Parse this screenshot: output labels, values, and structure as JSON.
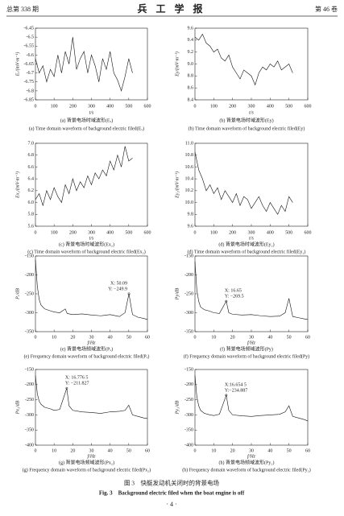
{
  "header": {
    "left": "总第 338 期",
    "title": "兵 工 学 报",
    "right": "第 46 卷"
  },
  "chart_data": [
    {
      "type": "line",
      "ylabel": "Eₓ/(mV·m⁻¹)",
      "xlabel": "t/s",
      "xlim": [
        0,
        600
      ],
      "xticks": [
        0,
        100,
        200,
        300,
        400,
        500,
        600
      ],
      "ylim": [
        -6.85,
        -6.45
      ],
      "yticks": [
        -6.85,
        -6.8,
        -6.75,
        -6.7,
        -6.65,
        -6.6,
        -6.55,
        -6.5,
        -6.45
      ],
      "x": [
        0,
        20,
        40,
        60,
        80,
        100,
        120,
        140,
        160,
        180,
        200,
        220,
        240,
        260,
        280,
        300,
        320,
        340,
        360,
        380,
        400,
        420,
        440,
        460,
        480,
        500,
        520
      ],
      "values": [
        -6.62,
        -6.7,
        -6.66,
        -6.75,
        -6.68,
        -6.72,
        -6.6,
        -6.7,
        -6.58,
        -6.65,
        -6.5,
        -6.68,
        -6.62,
        -6.58,
        -6.7,
        -6.6,
        -6.66,
        -6.75,
        -6.62,
        -6.68,
        -6.58,
        -6.7,
        -6.74,
        -6.8,
        -6.72,
        -6.62,
        -6.7
      ],
      "caption": "(a) 背景电场时域波形(Eₓ)",
      "caption_en": "(a) Time domain waveform of background electric filed(Eₓ)"
    },
    {
      "type": "line",
      "ylabel": "Ey/(mV·m⁻¹)",
      "xlabel": "t/s",
      "xlim": [
        0,
        600
      ],
      "xticks": [
        0,
        100,
        200,
        300,
        400,
        500,
        600
      ],
      "ylim": [
        8.4,
        9.6
      ],
      "yticks": [
        8.4,
        8.6,
        8.8,
        {
          "value": 9,
          "label": "9.0"
        },
        9.2,
        9.4,
        9.6
      ],
      "x": [
        0,
        20,
        40,
        60,
        80,
        100,
        120,
        140,
        160,
        180,
        200,
        220,
        240,
        260,
        280,
        300,
        320,
        340,
        360,
        380,
        400,
        420,
        440,
        460,
        480,
        500,
        520
      ],
      "values": [
        9.45,
        9.4,
        9.5,
        9.35,
        9.3,
        9.2,
        9.25,
        9.1,
        9.05,
        9.15,
        8.95,
        8.85,
        8.75,
        8.9,
        8.85,
        8.8,
        8.65,
        8.85,
        8.95,
        8.9,
        9.0,
        8.95,
        9.05,
        8.9,
        8.95,
        9.0,
        8.85
      ],
      "caption": "(b) 背景电场时域波形(Ey)",
      "caption_en": "(b) Time domain waveform of background electric filed(Ey)"
    },
    {
      "type": "line",
      "ylabel": "Ex₂/(mV·m⁻¹)",
      "xlabel": "t/s",
      "xlim": [
        0,
        600
      ],
      "xticks": [
        0,
        100,
        200,
        300,
        400,
        500,
        600
      ],
      "ylim": [
        5.6,
        7.0
      ],
      "yticks": [
        5.6,
        5.8,
        {
          "value": 6,
          "label": "6.0"
        },
        6.2,
        6.4,
        6.6,
        6.8,
        {
          "value": 7,
          "label": "7.0"
        }
      ],
      "x": [
        0,
        20,
        40,
        60,
        80,
        100,
        120,
        140,
        160,
        180,
        200,
        220,
        240,
        260,
        280,
        300,
        320,
        340,
        360,
        380,
        400,
        420,
        440,
        460,
        480,
        500,
        520
      ],
      "values": [
        6.05,
        6.15,
        5.95,
        6.2,
        6.05,
        6.25,
        6.1,
        6.0,
        6.3,
        6.15,
        6.4,
        6.2,
        6.35,
        6.25,
        6.45,
        6.3,
        6.5,
        6.4,
        6.55,
        6.45,
        6.7,
        6.55,
        6.8,
        6.6,
        6.95,
        6.7,
        6.75
      ],
      "caption": "(c) 背景电场时域波形(Ex₂)",
      "caption_en": "(c) Time domain waveform of background electric filed(Ex₂)"
    },
    {
      "type": "line",
      "ylabel": "Ey₂/(mV·m⁻¹)",
      "xlabel": "t/s",
      "xlim": [
        0,
        600
      ],
      "xticks": [
        0,
        100,
        200,
        300,
        400,
        500,
        600
      ],
      "ylim": [
        9.6,
        11.0
      ],
      "yticks": [
        9.6,
        9.8,
        {
          "value": 10,
          "label": "10.0"
        },
        10.2,
        10.4,
        10.6,
        10.8,
        {
          "value": 11,
          "label": "11.0"
        }
      ],
      "x": [
        0,
        20,
        40,
        60,
        80,
        100,
        120,
        140,
        160,
        180,
        200,
        220,
        240,
        260,
        280,
        300,
        320,
        340,
        360,
        380,
        400,
        420,
        440,
        460,
        480,
        500,
        520
      ],
      "values": [
        10.85,
        10.55,
        10.4,
        10.2,
        10.3,
        10.15,
        10.25,
        10.05,
        10.2,
        10.1,
        10.0,
        10.15,
        9.95,
        10.1,
        10.05,
        9.9,
        10.0,
        10.1,
        9.95,
        9.85,
        10.0,
        9.9,
        9.8,
        9.95,
        9.85,
        10.1,
        10.0
      ],
      "caption": "(d) 背景电场时域波形(Ey₂)",
      "caption_en": "(d) Time domain waveform of background electric filed(Ey₂)"
    },
    {
      "type": "line",
      "ylabel": "Pₓ/dB",
      "xlabel": "f/Hz",
      "xlim": [
        0,
        60
      ],
      "xticks": [
        0,
        10,
        20,
        30,
        40,
        50,
        60
      ],
      "ylim": [
        -350,
        -150
      ],
      "yticks": [
        -350,
        -300,
        -250,
        -200,
        -150
      ],
      "x": [
        0,
        1,
        2,
        3,
        5,
        8,
        10,
        13,
        16,
        17,
        20,
        25,
        30,
        35,
        40,
        45,
        48,
        50.09,
        52,
        55,
        58,
        60
      ],
      "values": [
        -160,
        -230,
        -265,
        -280,
        -290,
        -295,
        -298,
        -300,
        -290,
        -302,
        -305,
        -303,
        -306,
        -308,
        -305,
        -310,
        -300,
        -249.9,
        -305,
        -312,
        -315,
        -318
      ],
      "annotation": {
        "x": 50.09,
        "y": -249.9,
        "label_x": "X: 50.09",
        "label_y": "Y: −249.9"
      },
      "caption": "(e) 背景电场频域波形(Pₓ)",
      "caption_en": "(e) Frequency domain waveform of background electric filed(Pₓ)"
    },
    {
      "type": "line",
      "ylabel": "Py/dB",
      "xlabel": "f/Hz",
      "xlim": [
        0,
        60
      ],
      "xticks": [
        0,
        10,
        20,
        30,
        40,
        50,
        60
      ],
      "ylim": [
        -350,
        -150
      ],
      "yticks": [
        -350,
        -300,
        -250,
        -200,
        -150
      ],
      "x": [
        0,
        1,
        2,
        3,
        5,
        8,
        10,
        13,
        16.65,
        18,
        20,
        25,
        30,
        35,
        40,
        45,
        48,
        50,
        52,
        55,
        58,
        60
      ],
      "values": [
        -165,
        -240,
        -270,
        -285,
        -292,
        -296,
        -300,
        -302,
        -269.5,
        -300,
        -304,
        -306,
        -305,
        -308,
        -310,
        -309,
        -300,
        -262,
        -310,
        -313,
        -316,
        -318
      ],
      "annotation": {
        "x": 16.65,
        "y": -269.5,
        "label_x": "X: 16.65",
        "label_y": "Y: −269.5"
      },
      "caption": "(f) 背景电场频域波形(Py)",
      "caption_en": "(f) Frequency domain waveform of background electric filed(Py)"
    },
    {
      "type": "line",
      "ylabel": "Px₂/dB",
      "xlabel": "f/Hz",
      "xlim": [
        0,
        60
      ],
      "xticks": [
        0,
        10,
        20,
        30,
        40,
        50,
        60
      ],
      "ylim": [
        -400,
        -150
      ],
      "yticks": [
        -400,
        -350,
        -300,
        -250,
        -200,
        -150
      ],
      "x": [
        0,
        1,
        2,
        3,
        5,
        8,
        10,
        13,
        16.7765,
        18,
        20,
        25,
        30,
        35,
        40,
        45,
        48,
        50,
        52,
        55,
        58,
        60
      ],
      "values": [
        -170,
        -230,
        -255,
        -265,
        -275,
        -280,
        -285,
        -282,
        -211.827,
        -270,
        -285,
        -290,
        -292,
        -295,
        -290,
        -288,
        -285,
        -268,
        -300,
        -305,
        -310,
        -312
      ],
      "annotation": {
        "x": 16.7765,
        "y": -211.827,
        "label_x": "X: 16.776 5",
        "label_y": "Y: −211.827"
      },
      "caption": "(g) 背景电场频域波形(Px₂)",
      "caption_en": "(g) Frequency domain waveform of background electric filed(Px₂)"
    },
    {
      "type": "line",
      "ylabel": "Py₂/dB",
      "xlabel": "f/Hz",
      "xlim": [
        0,
        60
      ],
      "xticks": [
        0,
        10,
        20,
        30,
        40,
        50,
        60
      ],
      "ylim": [
        -400,
        -150
      ],
      "yticks": [
        -400,
        -350,
        -300,
        -250,
        -200,
        -150
      ],
      "x": [
        0,
        1,
        2,
        3,
        5,
        8,
        10,
        13,
        16.6545,
        18,
        20,
        25,
        30,
        35,
        40,
        45,
        48,
        50,
        52,
        55,
        58,
        60
      ],
      "values": [
        -170,
        -240,
        -270,
        -285,
        -295,
        -300,
        -302,
        -298,
        -234.887,
        -285,
        -300,
        -303,
        -305,
        -302,
        -300,
        -298,
        -290,
        -270,
        -305,
        -310,
        -315,
        -320
      ],
      "annotation": {
        "x": 16.6545,
        "y": -234.887,
        "label_x": "X:16.654 5",
        "label_y": "Y:−234.887"
      },
      "caption": "(h) 背景电场频域波形(Py₂)",
      "caption_en": "(h) Frequency domain waveform of background electric filed(Py₂)"
    }
  ],
  "figure_caption": "图 3　快艇发动机关闭时的背景电场",
  "figure_caption_en": "Fig. 3　Background electric filed when the boat engine is off",
  "page_number": "· 4 ·"
}
